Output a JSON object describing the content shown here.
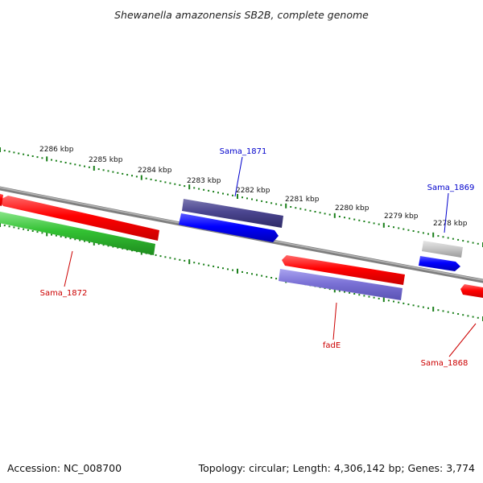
{
  "title": "Shewanella amazonensis SB2B, complete genome",
  "footer": {
    "accession": "Accession: NC_008700",
    "summary": "Topology: circular; Length: 4,306,142 bp; Genes: 3,774"
  },
  "colors": {
    "backbone": "#808080",
    "forward_cds": "#0000ff",
    "reverse_cds": "#ff0000",
    "ruler_dots": "#1a7f1a",
    "label_blue": "#0000cc",
    "label_red": "#cc0000"
  },
  "ruler_ticks": [
    "2286 kbp",
    "2285 kbp",
    "2284 kbp",
    "2283 kbp",
    "2282 kbp",
    "2281 kbp",
    "2280 kbp",
    "2279 kbp",
    "2278 kbp"
  ],
  "genes": {
    "sama_1871": "Sama_1871",
    "sama_1869": "Sama_1869",
    "sama_1872": "Sama_1872",
    "fade": "fadE",
    "sama_1868": "Sama_1868"
  }
}
